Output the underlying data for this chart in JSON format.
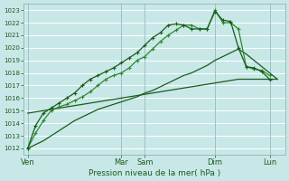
{
  "bg_color": "#c8e8e8",
  "grid_color": "#b0d8d8",
  "dark_green": "#1a5c1a",
  "light_green": "#2e8b2e",
  "xlabel": "Pression niveau de la mer( hPa )",
  "ylim": [
    1011.5,
    1023.5
  ],
  "yticks": [
    1012,
    1013,
    1014,
    1015,
    1016,
    1017,
    1018,
    1019,
    1020,
    1021,
    1022,
    1023
  ],
  "day_labels": [
    "Ven",
    "Mar",
    "Sam",
    "Dim",
    "Lun"
  ],
  "day_x": [
    0,
    12,
    15,
    24,
    31
  ],
  "xlim": [
    -0.5,
    33
  ],
  "s_flat_x": [
    0,
    1,
    2,
    3,
    4,
    5,
    6,
    7,
    8,
    9,
    10,
    11,
    12,
    13,
    14,
    15,
    16,
    17,
    18,
    19,
    20,
    21,
    22,
    23,
    24,
    25,
    26,
    27,
    28,
    29,
    30,
    31,
    32
  ],
  "s_flat_y": [
    1014.8,
    1014.9,
    1015.0,
    1015.1,
    1015.2,
    1015.3,
    1015.4,
    1015.5,
    1015.6,
    1015.7,
    1015.8,
    1015.9,
    1016.0,
    1016.1,
    1016.2,
    1016.3,
    1016.4,
    1016.5,
    1016.6,
    1016.7,
    1016.8,
    1016.9,
    1017.0,
    1017.1,
    1017.2,
    1017.3,
    1017.4,
    1017.5,
    1017.5,
    1017.5,
    1017.5,
    1017.5,
    1017.5
  ],
  "s_med_x": [
    0,
    1,
    2,
    3,
    4,
    5,
    6,
    7,
    8,
    9,
    10,
    11,
    12,
    13,
    14,
    15,
    16,
    17,
    18,
    19,
    20,
    21,
    22,
    23,
    24,
    25,
    26,
    27,
    28,
    29,
    30,
    31,
    32
  ],
  "s_med_y": [
    1012.0,
    1012.3,
    1012.6,
    1013.0,
    1013.4,
    1013.8,
    1014.2,
    1014.5,
    1014.8,
    1015.1,
    1015.3,
    1015.5,
    1015.7,
    1015.9,
    1016.1,
    1016.4,
    1016.6,
    1016.9,
    1017.2,
    1017.5,
    1017.8,
    1018.0,
    1018.3,
    1018.6,
    1019.0,
    1019.3,
    1019.6,
    1019.9,
    1019.5,
    1019.0,
    1018.5,
    1018.0,
    1017.5
  ],
  "s_steep1_x": [
    0,
    1,
    2,
    3,
    4,
    5,
    6,
    7,
    8,
    9,
    10,
    11,
    12,
    13,
    14,
    15,
    16,
    17,
    18,
    19,
    20,
    21,
    22,
    23,
    24,
    25,
    26,
    27,
    28,
    29,
    30,
    31
  ],
  "s_steep1_y": [
    1012.0,
    1013.2,
    1014.2,
    1015.0,
    1015.3,
    1015.5,
    1015.8,
    1016.1,
    1016.5,
    1017.0,
    1017.5,
    1017.8,
    1018.0,
    1018.4,
    1019.0,
    1019.3,
    1019.9,
    1020.5,
    1021.0,
    1021.4,
    1021.8,
    1021.8,
    1021.5,
    1021.5,
    1023.0,
    1022.0,
    1022.0,
    1021.5,
    1018.5,
    1018.3,
    1018.2,
    1017.8
  ],
  "s_steep2_x": [
    0,
    1,
    2,
    3,
    4,
    5,
    6,
    7,
    8,
    9,
    10,
    11,
    12,
    13,
    14,
    15,
    16,
    17,
    18,
    19,
    20,
    21,
    22,
    23,
    24,
    25,
    26,
    27,
    28,
    29,
    30,
    31
  ],
  "s_steep2_y": [
    1012.0,
    1013.8,
    1014.8,
    1015.2,
    1015.6,
    1016.0,
    1016.4,
    1017.0,
    1017.5,
    1017.8,
    1018.1,
    1018.4,
    1018.8,
    1019.2,
    1019.6,
    1020.2,
    1020.8,
    1021.2,
    1021.8,
    1021.9,
    1021.8,
    1021.5,
    1021.5,
    1021.5,
    1022.9,
    1022.2,
    1022.1,
    1020.0,
    1018.5,
    1018.4,
    1018.1,
    1017.5
  ]
}
